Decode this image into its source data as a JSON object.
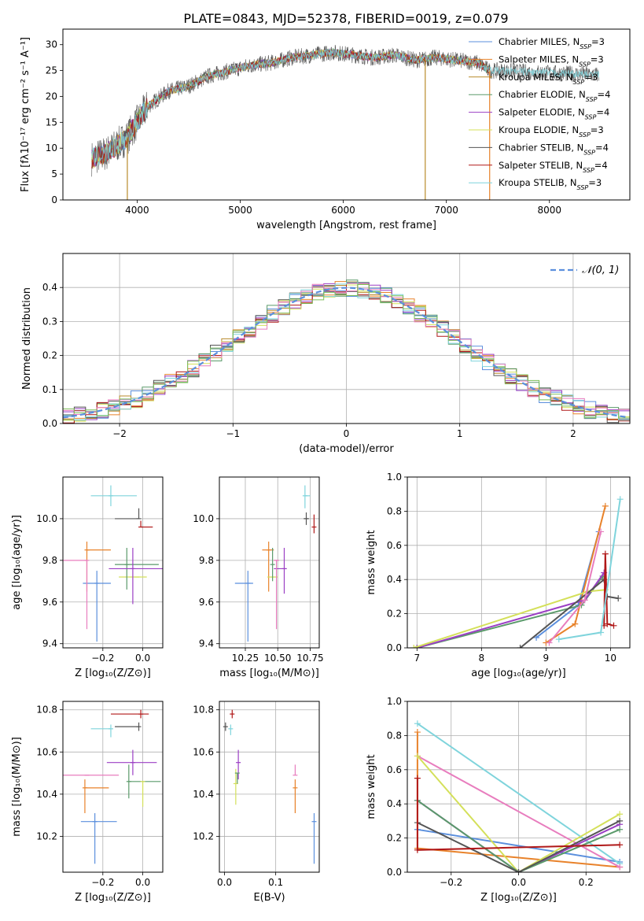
{
  "title": "PLATE=0843, MJD=52378, FIBERID=0019, z=0.079",
  "colors": {
    "chabrier_miles": "#5b8fdd",
    "salpeter_miles": "#e8822a",
    "kroupa_miles": "#b88a2a",
    "chabrier_elodie": "#5a9a6a",
    "salpeter_elodie": "#9b3fc4",
    "kroupa_elodie": "#d4e05a",
    "chabrier_stelib": "#555555",
    "salpeter_stelib": "#b01818",
    "kroupa_stelib": "#7fd4dc",
    "pink": "#e87dbe",
    "green": "#7dbf5a"
  },
  "chart_data": [
    {
      "id": "spectrum",
      "type": "line",
      "xlabel": "wavelength [Angstrom, rest frame]",
      "ylabel": "Flux [fλ10⁻¹⁷ erg cm⁻² s⁻¹ A⁻¹]",
      "xlim": [
        3280,
        8780
      ],
      "ylim": [
        0,
        33
      ],
      "xticks": [
        "4000",
        "5000",
        "6000",
        "7000",
        "8000"
      ],
      "yticks": [
        "0",
        "5",
        "10",
        "15",
        "20",
        "25",
        "30"
      ],
      "legend_position": "top-right",
      "legend": [
        {
          "label": "Chabrier MILES, N",
          "sub": "SSP",
          "tail": "=3"
        },
        {
          "label": "Salpeter MILES, N",
          "sub": "SSP",
          "tail": "=3"
        },
        {
          "label": "Kroupa MILES, N",
          "sub": "SSP",
          "tail": "=3"
        },
        {
          "label": "Chabrier ELODIE, N",
          "sub": "SSP",
          "tail": "=4"
        },
        {
          "label": "Salpeter ELODIE, N",
          "sub": "SSP",
          "tail": "=4"
        },
        {
          "label": "Kroupa ELODIE, N",
          "sub": "SSP",
          "tail": "=3"
        },
        {
          "label": "Chabrier STELIB, N",
          "sub": "SSP",
          "tail": "=4"
        },
        {
          "label": "Salpeter STELIB, N",
          "sub": "SSP",
          "tail": "=4"
        },
        {
          "label": "Kroupa STELIB, N",
          "sub": "SSP",
          "tail": "=3"
        }
      ],
      "continuum": {
        "x": [
          3560,
          3700,
          3900,
          4000,
          4100,
          4300,
          4500,
          4700,
          4900,
          5100,
          5300,
          5500,
          5700,
          5900,
          6100,
          6300,
          6500,
          6700,
          6900,
          7100,
          7300,
          7420
        ],
        "y": [
          8,
          9,
          12,
          15,
          18,
          21,
          22,
          24,
          25,
          26,
          26.5,
          27.5,
          28,
          28.5,
          28,
          27.5,
          28,
          27,
          27.5,
          27,
          26.5,
          25
        ]
      }
    },
    {
      "id": "residuals",
      "type": "histogram",
      "xlabel": "(data-model)/error",
      "ylabel": "Normed distribution",
      "xlim": [
        -2.5,
        2.5
      ],
      "ylim": [
        0,
        0.5
      ],
      "xticks": [
        "−2",
        "−1",
        "0",
        "1",
        "2"
      ],
      "yticks": [
        "0.0",
        "0.1",
        "0.2",
        "0.3",
        "0.4"
      ],
      "grid": true,
      "legend_position": "top-right",
      "legend": "𝒩(0, 1)"
    },
    {
      "id": "age_vs_Z",
      "type": "scatter",
      "xlabel": "Z [log₁₀(Z/Z⊙)]",
      "ylabel": "age  [log₁₀(age/yr)]",
      "xlim": [
        -0.4,
        0.1
      ],
      "ylim": [
        9.38,
        10.2
      ],
      "xticks": [
        "−0.2",
        "0.0"
      ],
      "yticks": [
        "9.4",
        "9.6",
        "9.8",
        "10.0"
      ],
      "grid": true,
      "points": [
        {
          "c": "chabrier_miles",
          "x": -0.23,
          "y": 9.69,
          "xe": [
            0.07,
            0.07
          ],
          "ye": [
            0.28,
            0.06
          ]
        },
        {
          "c": "salpeter_miles",
          "x": -0.28,
          "y": 9.85,
          "xe": [
            0.0,
            0.12
          ],
          "ye": [
            0.2,
            0.04
          ]
        },
        {
          "c": "kroupa_elodie",
          "x": -0.03,
          "y": 9.72,
          "xe": [
            0.09,
            0.05
          ],
          "ye": [
            0.0,
            0.0
          ]
        },
        {
          "c": "chabrier_elodie",
          "x": -0.08,
          "y": 9.78,
          "xe": [
            0.06,
            0.16
          ],
          "ye": [
            0.12,
            0.08
          ]
        },
        {
          "c": "salpeter_elodie",
          "x": -0.05,
          "y": 9.76,
          "xe": [
            0.12,
            0.15
          ],
          "ye": [
            0.17,
            0.1
          ]
        },
        {
          "c": "pink",
          "x": -0.28,
          "y": 9.8,
          "xe": [
            0.12,
            0.0
          ],
          "ye": [
            0.33,
            0.0
          ]
        },
        {
          "c": "chabrier_stelib",
          "x": -0.02,
          "y": 10.0,
          "xe": [
            0.12,
            0.0
          ],
          "ye": [
            0.0,
            0.05
          ]
        },
        {
          "c": "salpeter_stelib",
          "x": -0.01,
          "y": 9.96,
          "xe": [
            0.0,
            0.06
          ],
          "ye": [
            0.0,
            0.03
          ]
        },
        {
          "c": "kroupa_stelib",
          "x": -0.16,
          "y": 10.11,
          "xe": [
            0.1,
            0.13
          ],
          "ye": [
            0.05,
            0.05
          ]
        }
      ]
    },
    {
      "id": "age_vs_mass",
      "type": "scatter",
      "xlabel": "mass [log₁₀(M/M⊙)]",
      "ylabel": "",
      "xlim": [
        10.05,
        10.82
      ],
      "ylim": [
        9.38,
        10.2
      ],
      "xticks": [
        "10.25",
        "10.50",
        "10.75"
      ],
      "yticks": [
        "9.4",
        "9.6",
        "9.8",
        "10.0"
      ],
      "grid": true,
      "points": [
        {
          "c": "chabrier_miles",
          "x": 10.27,
          "y": 9.69,
          "xe": [
            0.1,
            0.04
          ],
          "ye": [
            0.28,
            0.06
          ]
        },
        {
          "c": "salpeter_miles",
          "x": 10.43,
          "y": 9.85,
          "xe": [
            0.05,
            0.04
          ],
          "ye": [
            0.2,
            0.04
          ]
        },
        {
          "c": "kroupa_elodie",
          "x": 10.46,
          "y": 9.72,
          "xe": [
            0.04,
            0.04
          ],
          "ye": [
            0.0,
            0.0
          ]
        },
        {
          "c": "chabrier_elodie",
          "x": 10.46,
          "y": 9.78,
          "xe": [
            0.0,
            0.0
          ],
          "ye": [
            0.08,
            0.08
          ]
        },
        {
          "c": "salpeter_elodie",
          "x": 10.55,
          "y": 9.76,
          "xe": [
            0.08,
            0.02
          ],
          "ye": [
            0.12,
            0.1
          ]
        },
        {
          "c": "pink",
          "x": 10.49,
          "y": 9.8,
          "xe": [
            0.02,
            0.02
          ],
          "ye": [
            0.33,
            0.0
          ]
        },
        {
          "c": "chabrier_stelib",
          "x": 10.72,
          "y": 10.0,
          "xe": [
            0.02,
            0.02
          ],
          "ye": [
            0.03,
            0.03
          ]
        },
        {
          "c": "salpeter_stelib",
          "x": 10.78,
          "y": 9.96,
          "xe": [
            0.0,
            0.0
          ],
          "ye": [
            0.03,
            0.06
          ]
        },
        {
          "c": "kroupa_stelib",
          "x": 10.71,
          "y": 10.11,
          "xe": [
            0.0,
            0.04
          ],
          "ye": [
            0.06,
            0.05
          ]
        }
      ]
    },
    {
      "id": "weight_vs_age",
      "type": "line",
      "xlabel": "age  [log₁₀(age/yr)]",
      "ylabel": "mass weight",
      "xlim": [
        6.85,
        10.3
      ],
      "ylim": [
        0,
        1
      ],
      "xticks": [
        "7",
        "8",
        "9",
        "10"
      ],
      "yticks": [
        "0.0",
        "0.2",
        "0.4",
        "0.6",
        "0.8",
        "1.0"
      ],
      "grid": true,
      "series": [
        {
          "c": "chabrier_miles",
          "x": [
            8.85,
            9.5,
            9.82
          ],
          "y": [
            0.06,
            0.25,
            0.68
          ]
        },
        {
          "c": "salpeter_miles",
          "x": [
            9.0,
            9.45,
            9.92
          ],
          "y": [
            0.03,
            0.14,
            0.83
          ]
        },
        {
          "c": "chabrier_elodie",
          "x": [
            7.0,
            9.55,
            9.88
          ],
          "y": [
            0.0,
            0.25,
            0.42
          ]
        },
        {
          "c": "salpeter_elodie",
          "x": [
            7.0,
            9.6,
            9.9
          ],
          "y": [
            0.0,
            0.28,
            0.44
          ]
        },
        {
          "c": "kroupa_elodie",
          "x": [
            6.95,
            9.65,
            9.92
          ],
          "y": [
            0.0,
            0.33,
            0.34
          ]
        },
        {
          "c": "chabrier_stelib",
          "x": [
            8.6,
            9.9,
            9.95,
            10.12
          ],
          "y": [
            0.0,
            0.4,
            0.3,
            0.29
          ]
        },
        {
          "c": "salpeter_stelib",
          "x": [
            9.9,
            9.92,
            9.95,
            10.05
          ],
          "y": [
            0.13,
            0.55,
            0.14,
            0.13
          ]
        },
        {
          "c": "kroupa_stelib",
          "x": [
            9.2,
            9.85,
            10.15
          ],
          "y": [
            0.05,
            0.09,
            0.87
          ]
        },
        {
          "c": "pink",
          "x": [
            9.05,
            9.6,
            9.85
          ],
          "y": [
            0.03,
            0.28,
            0.68
          ]
        }
      ]
    },
    {
      "id": "mass_vs_Z",
      "type": "scatter",
      "xlabel": "Z [log₁₀(Z/Z⊙)]",
      "ylabel": "mass [log₁₀(M/M⊙)]",
      "xlim": [
        -0.4,
        0.1
      ],
      "ylim": [
        10.03,
        10.84
      ],
      "xticks": [
        "−0.2",
        "0.0"
      ],
      "yticks": [
        "10.2",
        "10.4",
        "10.6",
        "10.8"
      ],
      "grid": true,
      "points": [
        {
          "c": "chabrier_miles",
          "x": -0.24,
          "y": 10.27,
          "xe": [
            0.07,
            0.11
          ],
          "ye": [
            0.2,
            0.04
          ]
        },
        {
          "c": "salpeter_miles",
          "x": -0.29,
          "y": 10.43,
          "xe": [
            0.0,
            0.12
          ],
          "ye": [
            0.12,
            0.04
          ]
        },
        {
          "c": "chabrier_elodie",
          "x": -0.07,
          "y": 10.46,
          "xe": [
            0.0,
            0.16
          ],
          "ye": [
            0.08,
            0.08
          ]
        },
        {
          "c": "kroupa_elodie",
          "x": 0.0,
          "y": 10.46,
          "xe": [
            0.0,
            0.0
          ],
          "ye": [
            0.12,
            0.0
          ]
        },
        {
          "c": "salpeter_elodie",
          "x": -0.05,
          "y": 10.55,
          "xe": [
            0.13,
            0.12
          ],
          "ye": [
            0.06,
            0.06
          ]
        },
        {
          "c": "pink",
          "x": -0.28,
          "y": 10.49,
          "xe": [
            0.12,
            0.16
          ],
          "ye": [
            0.0,
            0.0
          ]
        },
        {
          "c": "chabrier_stelib",
          "x": -0.02,
          "y": 10.72,
          "xe": [
            0.12,
            0.0
          ],
          "ye": [
            0.02,
            0.02
          ]
        },
        {
          "c": "salpeter_stelib",
          "x": -0.01,
          "y": 10.78,
          "xe": [
            0.15,
            0.04
          ],
          "ye": [
            0.02,
            0.02
          ]
        },
        {
          "c": "kroupa_stelib",
          "x": -0.16,
          "y": 10.71,
          "xe": [
            0.1,
            0.0
          ],
          "ye": [
            0.04,
            0.02
          ]
        }
      ]
    },
    {
      "id": "mass_vs_ebv",
      "type": "scatter",
      "xlabel": "E(B-V)",
      "ylabel": "",
      "xlim": [
        -0.01,
        0.185
      ],
      "ylim": [
        10.03,
        10.84
      ],
      "xticks": [
        "0.0",
        "0.1"
      ],
      "yticks": [
        "10.2",
        "10.4",
        "10.6",
        "10.8"
      ],
      "grid": true,
      "points": [
        {
          "c": "chabrier_miles",
          "x": 0.175,
          "y": 10.27,
          "xe": [
            0,
            0
          ],
          "ye": [
            0.2,
            0.04
          ]
        },
        {
          "c": "salpeter_miles",
          "x": 0.138,
          "y": 10.43,
          "xe": [
            0,
            0
          ],
          "ye": [
            0.12,
            0.04
          ]
        },
        {
          "c": "pink",
          "x": 0.138,
          "y": 10.49,
          "xe": [
            0,
            0
          ],
          "ye": [
            0.0,
            0.05
          ]
        },
        {
          "c": "kroupa_elodie",
          "x": 0.022,
          "y": 10.45,
          "xe": [
            0,
            0
          ],
          "ye": [
            0.1,
            0.07
          ]
        },
        {
          "c": "salpeter_elodie",
          "x": 0.027,
          "y": 10.55,
          "xe": [
            0,
            0
          ],
          "ye": [
            0.08,
            0.06
          ]
        },
        {
          "c": "chabrier_elodie",
          "x": 0.025,
          "y": 10.5,
          "xe": [
            0,
            0
          ],
          "ye": [
            0.05,
            0.0
          ]
        },
        {
          "c": "chabrier_stelib",
          "x": 0.002,
          "y": 10.72,
          "xe": [
            0,
            0
          ],
          "ye": [
            0.02,
            0.02
          ]
        },
        {
          "c": "salpeter_stelib",
          "x": 0.015,
          "y": 10.78,
          "xe": [
            0,
            0
          ],
          "ye": [
            0.02,
            0.02
          ]
        },
        {
          "c": "kroupa_stelib",
          "x": 0.012,
          "y": 10.71,
          "xe": [
            0,
            0
          ],
          "ye": [
            0.03,
            0.02
          ]
        }
      ]
    },
    {
      "id": "weight_vs_Z",
      "type": "line",
      "xlabel": "Z [log₁₀(Z/Z⊙)]",
      "ylabel": "mass weight",
      "xlim": [
        -0.33,
        0.33
      ],
      "ylim": [
        0,
        1
      ],
      "xticks": [
        "−0.2",
        "0.0",
        "0.2"
      ],
      "yticks": [
        "0.0",
        "0.2",
        "0.4",
        "0.6",
        "0.8",
        "1.0"
      ],
      "grid": true,
      "series": [
        {
          "c": "chabrier_miles",
          "x": [
            -0.3,
            0.3
          ],
          "y": [
            0.25,
            0.06
          ]
        },
        {
          "c": "salpeter_miles",
          "x": [
            -0.3,
            -0.3,
            0.3
          ],
          "y": [
            0.82,
            0.14,
            0.03
          ]
        },
        {
          "c": "kroupa_stelib",
          "x": [
            -0.3,
            0.3
          ],
          "y": [
            0.87,
            0.05
          ]
        },
        {
          "c": "pink",
          "x": [
            -0.3,
            0.3
          ],
          "y": [
            0.68,
            0.03
          ]
        },
        {
          "c": "kroupa_elodie",
          "x": [
            -0.3,
            0.0,
            0.3
          ],
          "y": [
            0.68,
            0.0,
            0.34
          ]
        },
        {
          "c": "salpeter_elodie",
          "x": [
            -0.3,
            0.0,
            0.3
          ],
          "y": [
            0.42,
            0.0,
            0.28
          ]
        },
        {
          "c": "chabrier_elodie",
          "x": [
            -0.3,
            0.0,
            0.3
          ],
          "y": [
            0.42,
            0.0,
            0.25
          ]
        },
        {
          "c": "chabrier_stelib",
          "x": [
            -0.3,
            0.0,
            0.3
          ],
          "y": [
            0.29,
            0.0,
            0.3
          ]
        },
        {
          "c": "salpeter_stelib",
          "x": [
            -0.3,
            -0.3,
            0.3
          ],
          "y": [
            0.55,
            0.13,
            0.16
          ]
        }
      ]
    }
  ]
}
